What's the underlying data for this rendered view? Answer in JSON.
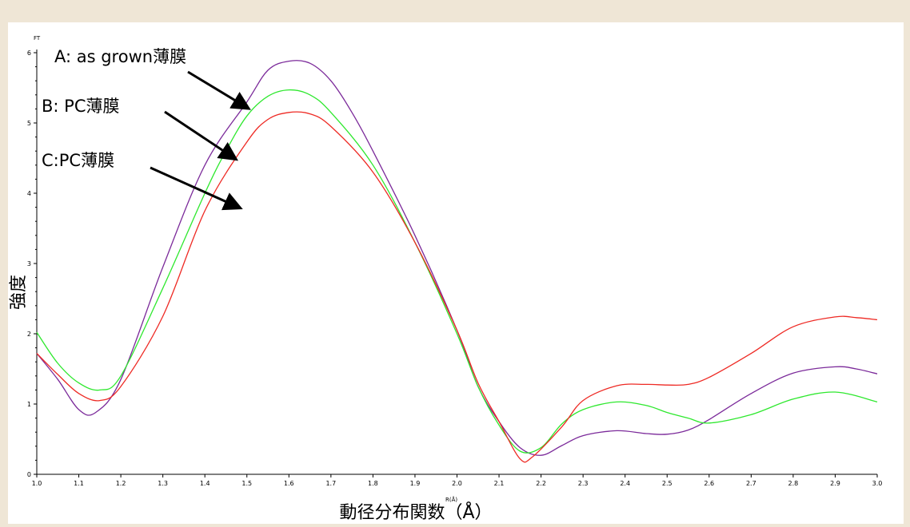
{
  "chart_data": {
    "type": "line",
    "ylabel_top": "FT",
    "xlabel_small": "R(Å)",
    "ylabel": "強度",
    "xlabel": "動径分布関数（Å）",
    "xlim": [
      1.0,
      3.0
    ],
    "ylim": [
      0,
      6
    ],
    "x_ticks": [
      "1.0",
      "1.1",
      "1.2",
      "1.3",
      "1.4",
      "1.5",
      "1.6",
      "1.7",
      "1.8",
      "1.9",
      "2.0",
      "2.1",
      "2.2",
      "2.3",
      "2.4",
      "2.5",
      "2.6",
      "2.7",
      "2.8",
      "2.9",
      "3.0"
    ],
    "y_ticks": [
      "0",
      "1",
      "2",
      "3",
      "4",
      "5",
      "6"
    ],
    "grid": false,
    "series": [
      {
        "key": "A",
        "color": "#7b2a9a",
        "x": [
          1.0,
          1.05,
          1.1,
          1.14,
          1.2,
          1.3,
          1.4,
          1.5,
          1.55,
          1.6,
          1.65,
          1.7,
          1.75,
          1.8,
          1.9,
          2.0,
          2.05,
          2.1,
          2.15,
          2.2,
          2.25,
          2.3,
          2.38,
          2.45,
          2.5,
          2.55,
          2.6,
          2.7,
          2.8,
          2.9,
          2.95,
          3.0
        ],
        "y": [
          1.72,
          1.35,
          0.92,
          0.88,
          1.35,
          2.95,
          4.4,
          5.3,
          5.75,
          5.88,
          5.85,
          5.6,
          5.15,
          4.6,
          3.4,
          2.05,
          1.25,
          0.75,
          0.38,
          0.27,
          0.41,
          0.55,
          0.62,
          0.58,
          0.57,
          0.63,
          0.78,
          1.15,
          1.44,
          1.53,
          1.5,
          1.43
        ]
      },
      {
        "key": "B",
        "color": "#2ee82e",
        "x": [
          1.0,
          1.05,
          1.1,
          1.15,
          1.2,
          1.3,
          1.4,
          1.45,
          1.5,
          1.55,
          1.6,
          1.65,
          1.7,
          1.8,
          1.9,
          2.0,
          2.05,
          2.1,
          2.15,
          2.2,
          2.25,
          2.3,
          2.38,
          2.45,
          2.5,
          2.55,
          2.6,
          2.7,
          2.8,
          2.9,
          3.0
        ],
        "y": [
          2.02,
          1.58,
          1.3,
          1.2,
          1.4,
          2.65,
          4.0,
          4.6,
          5.1,
          5.38,
          5.47,
          5.4,
          5.15,
          4.4,
          3.3,
          2.0,
          1.25,
          0.7,
          0.33,
          0.38,
          0.72,
          0.92,
          1.03,
          0.98,
          0.88,
          0.8,
          0.73,
          0.85,
          1.07,
          1.17,
          1.03
        ]
      },
      {
        "key": "C",
        "color": "#ee2a24",
        "x": [
          1.0,
          1.05,
          1.1,
          1.15,
          1.2,
          1.3,
          1.4,
          1.5,
          1.55,
          1.6,
          1.65,
          1.7,
          1.8,
          1.9,
          2.0,
          2.05,
          2.1,
          2.15,
          2.18,
          2.25,
          2.3,
          2.38,
          2.45,
          2.5,
          2.55,
          2.6,
          2.7,
          2.8,
          2.9,
          2.95,
          3.0
        ],
        "y": [
          1.72,
          1.42,
          1.15,
          1.05,
          1.25,
          2.25,
          3.75,
          4.73,
          5.05,
          5.15,
          5.13,
          4.95,
          4.3,
          3.3,
          2.05,
          1.3,
          0.75,
          0.22,
          0.25,
          0.68,
          1.05,
          1.26,
          1.28,
          1.27,
          1.28,
          1.38,
          1.72,
          2.1,
          2.24,
          2.23,
          2.2
        ]
      }
    ],
    "annotations": [
      {
        "text": "A: as grown薄膜",
        "target_x": 1.5,
        "target_y": 5.22
      },
      {
        "text": "B: PC薄膜",
        "target_x": 1.47,
        "target_y": 4.5
      },
      {
        "text": "C:PC薄膜",
        "target_x": 1.48,
        "target_y": 3.8
      }
    ]
  }
}
